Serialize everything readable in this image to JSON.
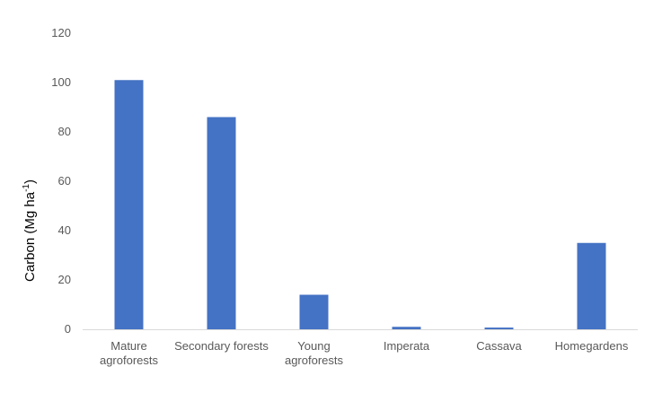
{
  "chart_data": {
    "type": "bar",
    "title": "",
    "xlabel": "",
    "ylabel_main": "Carbon (Mg ha",
    "ylabel_sup": "-1",
    "ylabel_close": ")",
    "ylim": [
      0,
      120
    ],
    "yticks": [
      0,
      20,
      40,
      60,
      80,
      100,
      120
    ],
    "grid": false,
    "legend": "none",
    "categories": [
      [
        "Mature",
        "agroforests"
      ],
      [
        "Secondary forests"
      ],
      [
        "Young",
        "agroforests"
      ],
      [
        "Imperata"
      ],
      [
        "Cassava"
      ],
      [
        "Homegardens"
      ]
    ],
    "values": [
      101,
      86,
      14,
      1,
      0.7,
      35
    ],
    "bar_color": "#4472C4",
    "axis_color": "#D9D9D9"
  }
}
